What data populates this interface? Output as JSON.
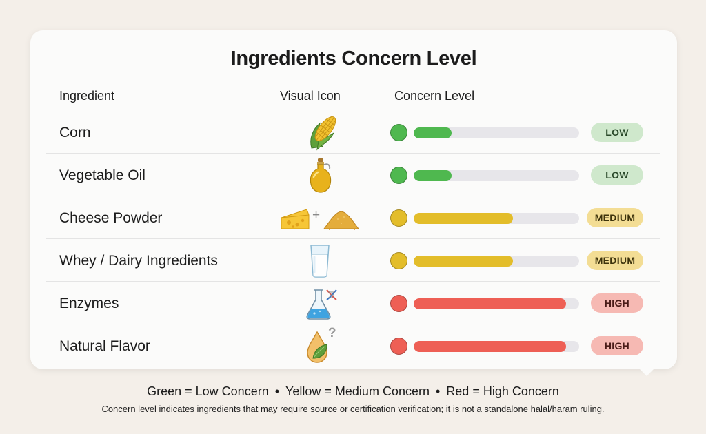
{
  "title": "Ingredients Concern Level",
  "columns": {
    "ingredient": "Ingredient",
    "icon": "Visual Icon",
    "concern": "Concern Level"
  },
  "levels": {
    "low": {
      "label": "LOW",
      "fill_fraction": 0.23,
      "color": "#4fb84f",
      "badge_bg": "#cfe8cc",
      "badge_text": "#2b4a2b"
    },
    "medium": {
      "label": "MEDIUM",
      "fill_fraction": 0.6,
      "color": "#e3bd2a",
      "badge_bg": "#f3dd94",
      "badge_text": "#3d330c"
    },
    "high": {
      "label": "HIGH",
      "fill_fraction": 0.92,
      "color": "#ee5f55",
      "badge_bg": "#f6b9b3",
      "badge_text": "#4a1c18"
    }
  },
  "rows": [
    {
      "name": "Corn",
      "icon": "corn-icon",
      "level": "low"
    },
    {
      "name": "Vegetable Oil",
      "icon": "oil-bottle-icon",
      "level": "low"
    },
    {
      "name": "Cheese Powder",
      "icon": "cheese-powder-icon",
      "level": "medium",
      "icon_joiner": "+"
    },
    {
      "name": "Whey / Dairy Ingredients",
      "icon": "milk-glass-icon",
      "level": "medium"
    },
    {
      "name": "Enzymes",
      "icon": "flask-dna-icon",
      "level": "high"
    },
    {
      "name": "Natural Flavor",
      "icon": "flavor-drop-leaf-icon",
      "level": "high",
      "icon_mark": "?"
    }
  ],
  "legend": {
    "green": "Green = Low Concern",
    "yellow": "Yellow = Medium Concern",
    "red": "Red = High Concern",
    "separator": "•"
  },
  "note": "Concern level indicates ingredients that may require source or certification verification; it is not a standalone halal/haram ruling."
}
